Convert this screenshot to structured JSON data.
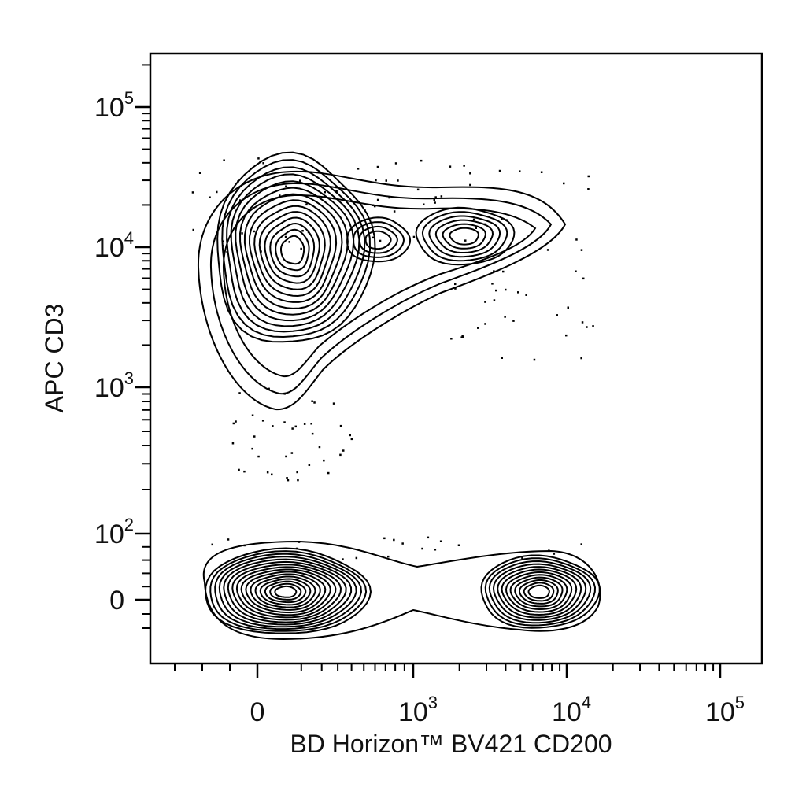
{
  "chart_data": {
    "type": "contour",
    "title": "",
    "xlabel": "BD Horizon™ BV421 CD200",
    "ylabel": "APC CD3",
    "x_scale": "biexponential",
    "y_scale": "biexponential",
    "xlim": [
      -300,
      250000
    ],
    "ylim": [
      -60,
      250000
    ],
    "x_ticks": [
      {
        "value": 0,
        "label": "0"
      },
      {
        "value": 1000,
        "label": "10",
        "sup": "3"
      },
      {
        "value": 10000,
        "label": "10",
        "sup": "4"
      },
      {
        "value": 100000,
        "label": "10",
        "sup": "5"
      }
    ],
    "y_ticks": [
      {
        "value": 0,
        "label": "0"
      },
      {
        "value": 100,
        "label": "10",
        "sup": "2"
      },
      {
        "value": 1000,
        "label": "10",
        "sup": "3"
      },
      {
        "value": 10000,
        "label": "10",
        "sup": "4"
      },
      {
        "value": 100000,
        "label": "10",
        "sup": "5"
      }
    ],
    "populations": [
      {
        "name": "",
        "center_x": 120,
        "center_y": 9000
      },
      {
        "name": "",
        "center_x": 2500,
        "center_y": 11000
      },
      {
        "name": "",
        "center_x": 120,
        "center_y": 10
      },
      {
        "name": "",
        "center_x": 6500,
        "center_y": 10
      }
    ]
  }
}
